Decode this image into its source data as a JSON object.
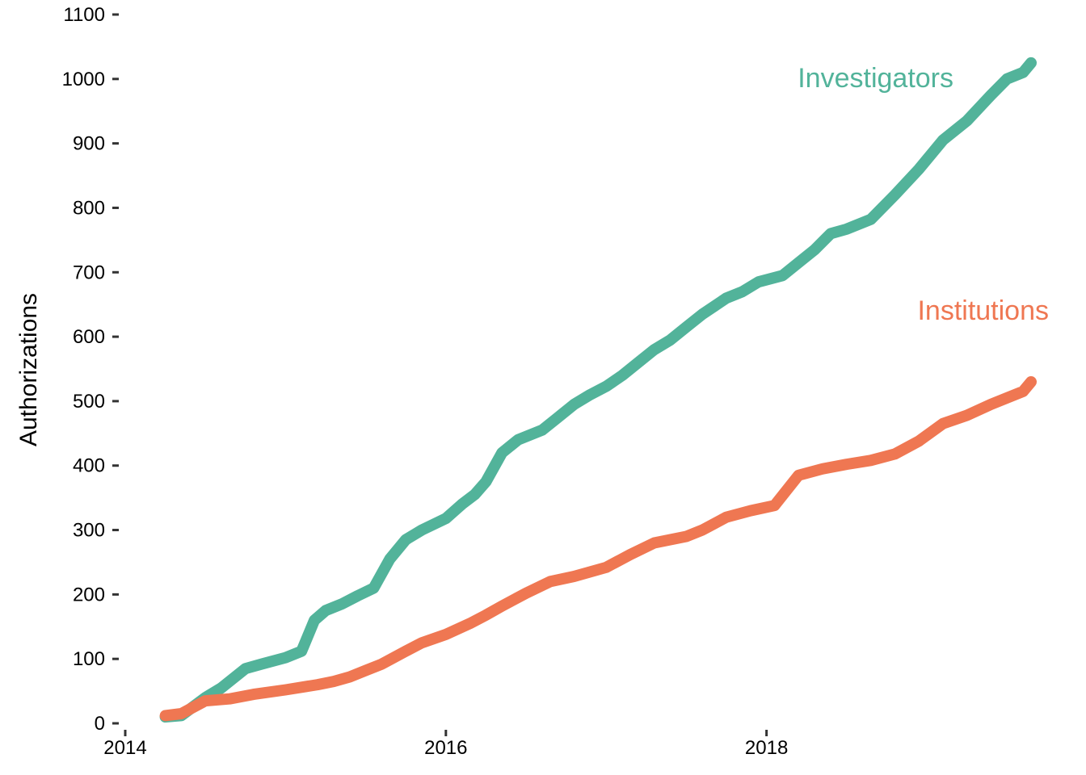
{
  "chart_data": {
    "type": "line",
    "title": "",
    "xlabel": "",
    "ylabel": "Authorizations",
    "xlim": [
      2014,
      2019.65
    ],
    "ylim": [
      0,
      1100
    ],
    "x_ticks": [
      {
        "value": 2014,
        "label": "2014"
      },
      {
        "value": 2016,
        "label": "2016"
      },
      {
        "value": 2018,
        "label": "2018"
      }
    ],
    "y_ticks": [
      {
        "value": 0,
        "label": "0"
      },
      {
        "value": 100,
        "label": "100"
      },
      {
        "value": 200,
        "label": "200"
      },
      {
        "value": 300,
        "label": "300"
      },
      {
        "value": 400,
        "label": "400"
      },
      {
        "value": 500,
        "label": "500"
      },
      {
        "value": 600,
        "label": "600"
      },
      {
        "value": 700,
        "label": "700"
      },
      {
        "value": 800,
        "label": "800"
      },
      {
        "value": 900,
        "label": "900"
      },
      {
        "value": 1000,
        "label": "1000"
      },
      {
        "value": 1100,
        "label": "1100"
      }
    ],
    "grid": false,
    "legend": "direct labels at line ends",
    "series": [
      {
        "name": "Investigators",
        "color": "#52b39a",
        "x": [
          2014.25,
          2014.35,
          2014.5,
          2014.6,
          2014.75,
          2014.85,
          2015.0,
          2015.1,
          2015.18,
          2015.25,
          2015.35,
          2015.45,
          2015.55,
          2015.65,
          2015.75,
          2015.85,
          2016.0,
          2016.1,
          2016.18,
          2016.25,
          2016.35,
          2016.45,
          2016.6,
          2016.7,
          2016.8,
          2016.9,
          2017.0,
          2017.1,
          2017.2,
          2017.3,
          2017.4,
          2017.5,
          2017.6,
          2017.75,
          2017.85,
          2017.95,
          2018.1,
          2018.2,
          2018.3,
          2018.4,
          2018.5,
          2018.65,
          2018.8,
          2018.95,
          2019.1,
          2019.25,
          2019.4,
          2019.5,
          2019.6,
          2019.65
        ],
        "y": [
          10,
          12,
          40,
          55,
          85,
          92,
          102,
          112,
          160,
          175,
          185,
          198,
          210,
          255,
          285,
          300,
          318,
          340,
          355,
          375,
          420,
          440,
          455,
          475,
          495,
          510,
          523,
          540,
          560,
          580,
          595,
          615,
          635,
          660,
          670,
          685,
          695,
          715,
          735,
          760,
          767,
          782,
          820,
          860,
          905,
          935,
          975,
          1000,
          1010,
          1025
        ]
      },
      {
        "name": "Institutions",
        "color": "#ef7752",
        "x": [
          2014.25,
          2014.35,
          2014.5,
          2014.65,
          2014.8,
          2015.0,
          2015.2,
          2015.3,
          2015.4,
          2015.5,
          2015.6,
          2015.75,
          2015.85,
          2016.0,
          2016.15,
          2016.25,
          2016.35,
          2016.5,
          2016.65,
          2016.8,
          2017.0,
          2017.15,
          2017.3,
          2017.5,
          2017.6,
          2017.75,
          2017.9,
          2018.05,
          2018.2,
          2018.35,
          2018.5,
          2018.65,
          2018.8,
          2018.95,
          2019.1,
          2019.25,
          2019.4,
          2019.5,
          2019.6,
          2019.65
        ],
        "y": [
          12,
          15,
          35,
          38,
          45,
          52,
          60,
          65,
          72,
          82,
          92,
          112,
          125,
          138,
          155,
          168,
          182,
          202,
          220,
          228,
          242,
          262,
          280,
          290,
          300,
          320,
          330,
          338,
          385,
          395,
          402,
          408,
          418,
          438,
          465,
          478,
          495,
          505,
          515,
          530
        ]
      }
    ]
  }
}
